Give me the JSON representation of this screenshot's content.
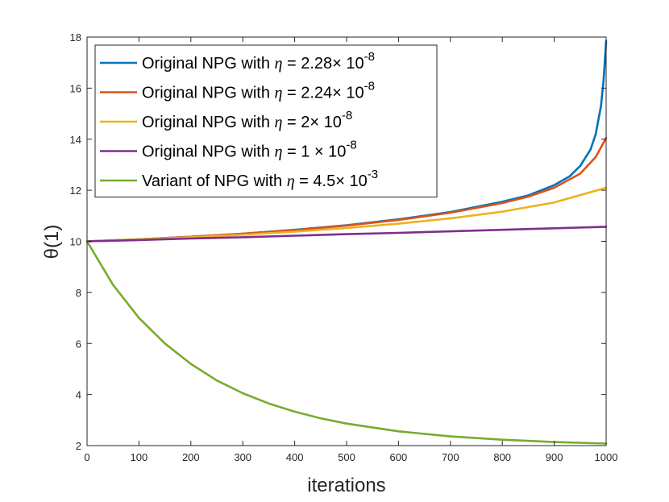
{
  "chart_data": {
    "type": "line",
    "xlabel": "iterations",
    "ylabel": "θ(1)",
    "xlim": [
      0,
      1000
    ],
    "ylim": [
      2,
      18
    ],
    "xticks": [
      "0",
      "100",
      "200",
      "300",
      "400",
      "500",
      "600",
      "700",
      "800",
      "900",
      "1000"
    ],
    "yticks": [
      "2",
      "4",
      "6",
      "8",
      "10",
      "12",
      "14",
      "16",
      "18"
    ],
    "legend_position": "top-left",
    "series": [
      {
        "name": "Original NPG with η = 2.28× 10⁻⁸",
        "legend": {
          "prefix": "Original NPG with ",
          "eta": "η",
          "mid": " = 2.28× 10",
          "exp": "-8"
        },
        "color": "#0072BD",
        "x": [
          0,
          100,
          200,
          300,
          400,
          500,
          600,
          700,
          800,
          850,
          900,
          930,
          950,
          970,
          980,
          990,
          995,
          1000
        ],
        "y": [
          10.0,
          10.08,
          10.18,
          10.3,
          10.45,
          10.63,
          10.86,
          11.15,
          11.55,
          11.8,
          12.2,
          12.55,
          12.95,
          13.6,
          14.2,
          15.3,
          16.3,
          17.85
        ]
      },
      {
        "name": "Original NPG with η = 2.24× 10⁻⁸",
        "legend": {
          "prefix": "Original NPG with ",
          "eta": "η",
          "mid": " = 2.24× 10",
          "exp": "-8"
        },
        "color": "#D95319",
        "x": [
          0,
          100,
          200,
          300,
          400,
          500,
          600,
          700,
          800,
          850,
          900,
          950,
          980,
          1000
        ],
        "y": [
          10.0,
          10.08,
          10.18,
          10.3,
          10.44,
          10.62,
          10.84,
          11.12,
          11.5,
          11.75,
          12.1,
          12.65,
          13.3,
          14.05
        ]
      },
      {
        "name": "Original NPG with η = 2× 10⁻⁸",
        "legend": {
          "prefix": "Original NPG with ",
          "eta": "η",
          "mid": " = 2× 10",
          "exp": "-8"
        },
        "color": "#EDB120",
        "x": [
          0,
          100,
          200,
          300,
          400,
          500,
          600,
          700,
          800,
          900,
          1000
        ],
        "y": [
          10.0,
          10.07,
          10.16,
          10.26,
          10.38,
          10.52,
          10.69,
          10.9,
          11.16,
          11.52,
          12.1
        ]
      },
      {
        "name": "Original NPG with η = 1 × 10⁻⁸",
        "legend": {
          "prefix": "Original NPG with ",
          "eta": "η",
          "mid": " = 1 × 10",
          "exp": "-8"
        },
        "color": "#7E2F8E",
        "x": [
          0,
          100,
          200,
          300,
          400,
          500,
          600,
          700,
          800,
          900,
          1000
        ],
        "y": [
          10.0,
          10.05,
          10.11,
          10.16,
          10.22,
          10.28,
          10.33,
          10.39,
          10.45,
          10.51,
          10.57
        ]
      },
      {
        "name": "Variant of NPG with η = 4.5× 10⁻³",
        "legend": {
          "prefix": "Variant of NPG with ",
          "eta": "η",
          "mid": " = 4.5× 10",
          "exp": "-3"
        },
        "color": "#77AC30",
        "x": [
          0,
          50,
          100,
          150,
          200,
          250,
          300,
          350,
          400,
          450,
          500,
          600,
          700,
          800,
          900,
          1000
        ],
        "y": [
          10.0,
          8.3,
          7.0,
          6.0,
          5.2,
          4.55,
          4.05,
          3.65,
          3.33,
          3.07,
          2.86,
          2.56,
          2.36,
          2.23,
          2.14,
          2.08
        ]
      }
    ]
  }
}
